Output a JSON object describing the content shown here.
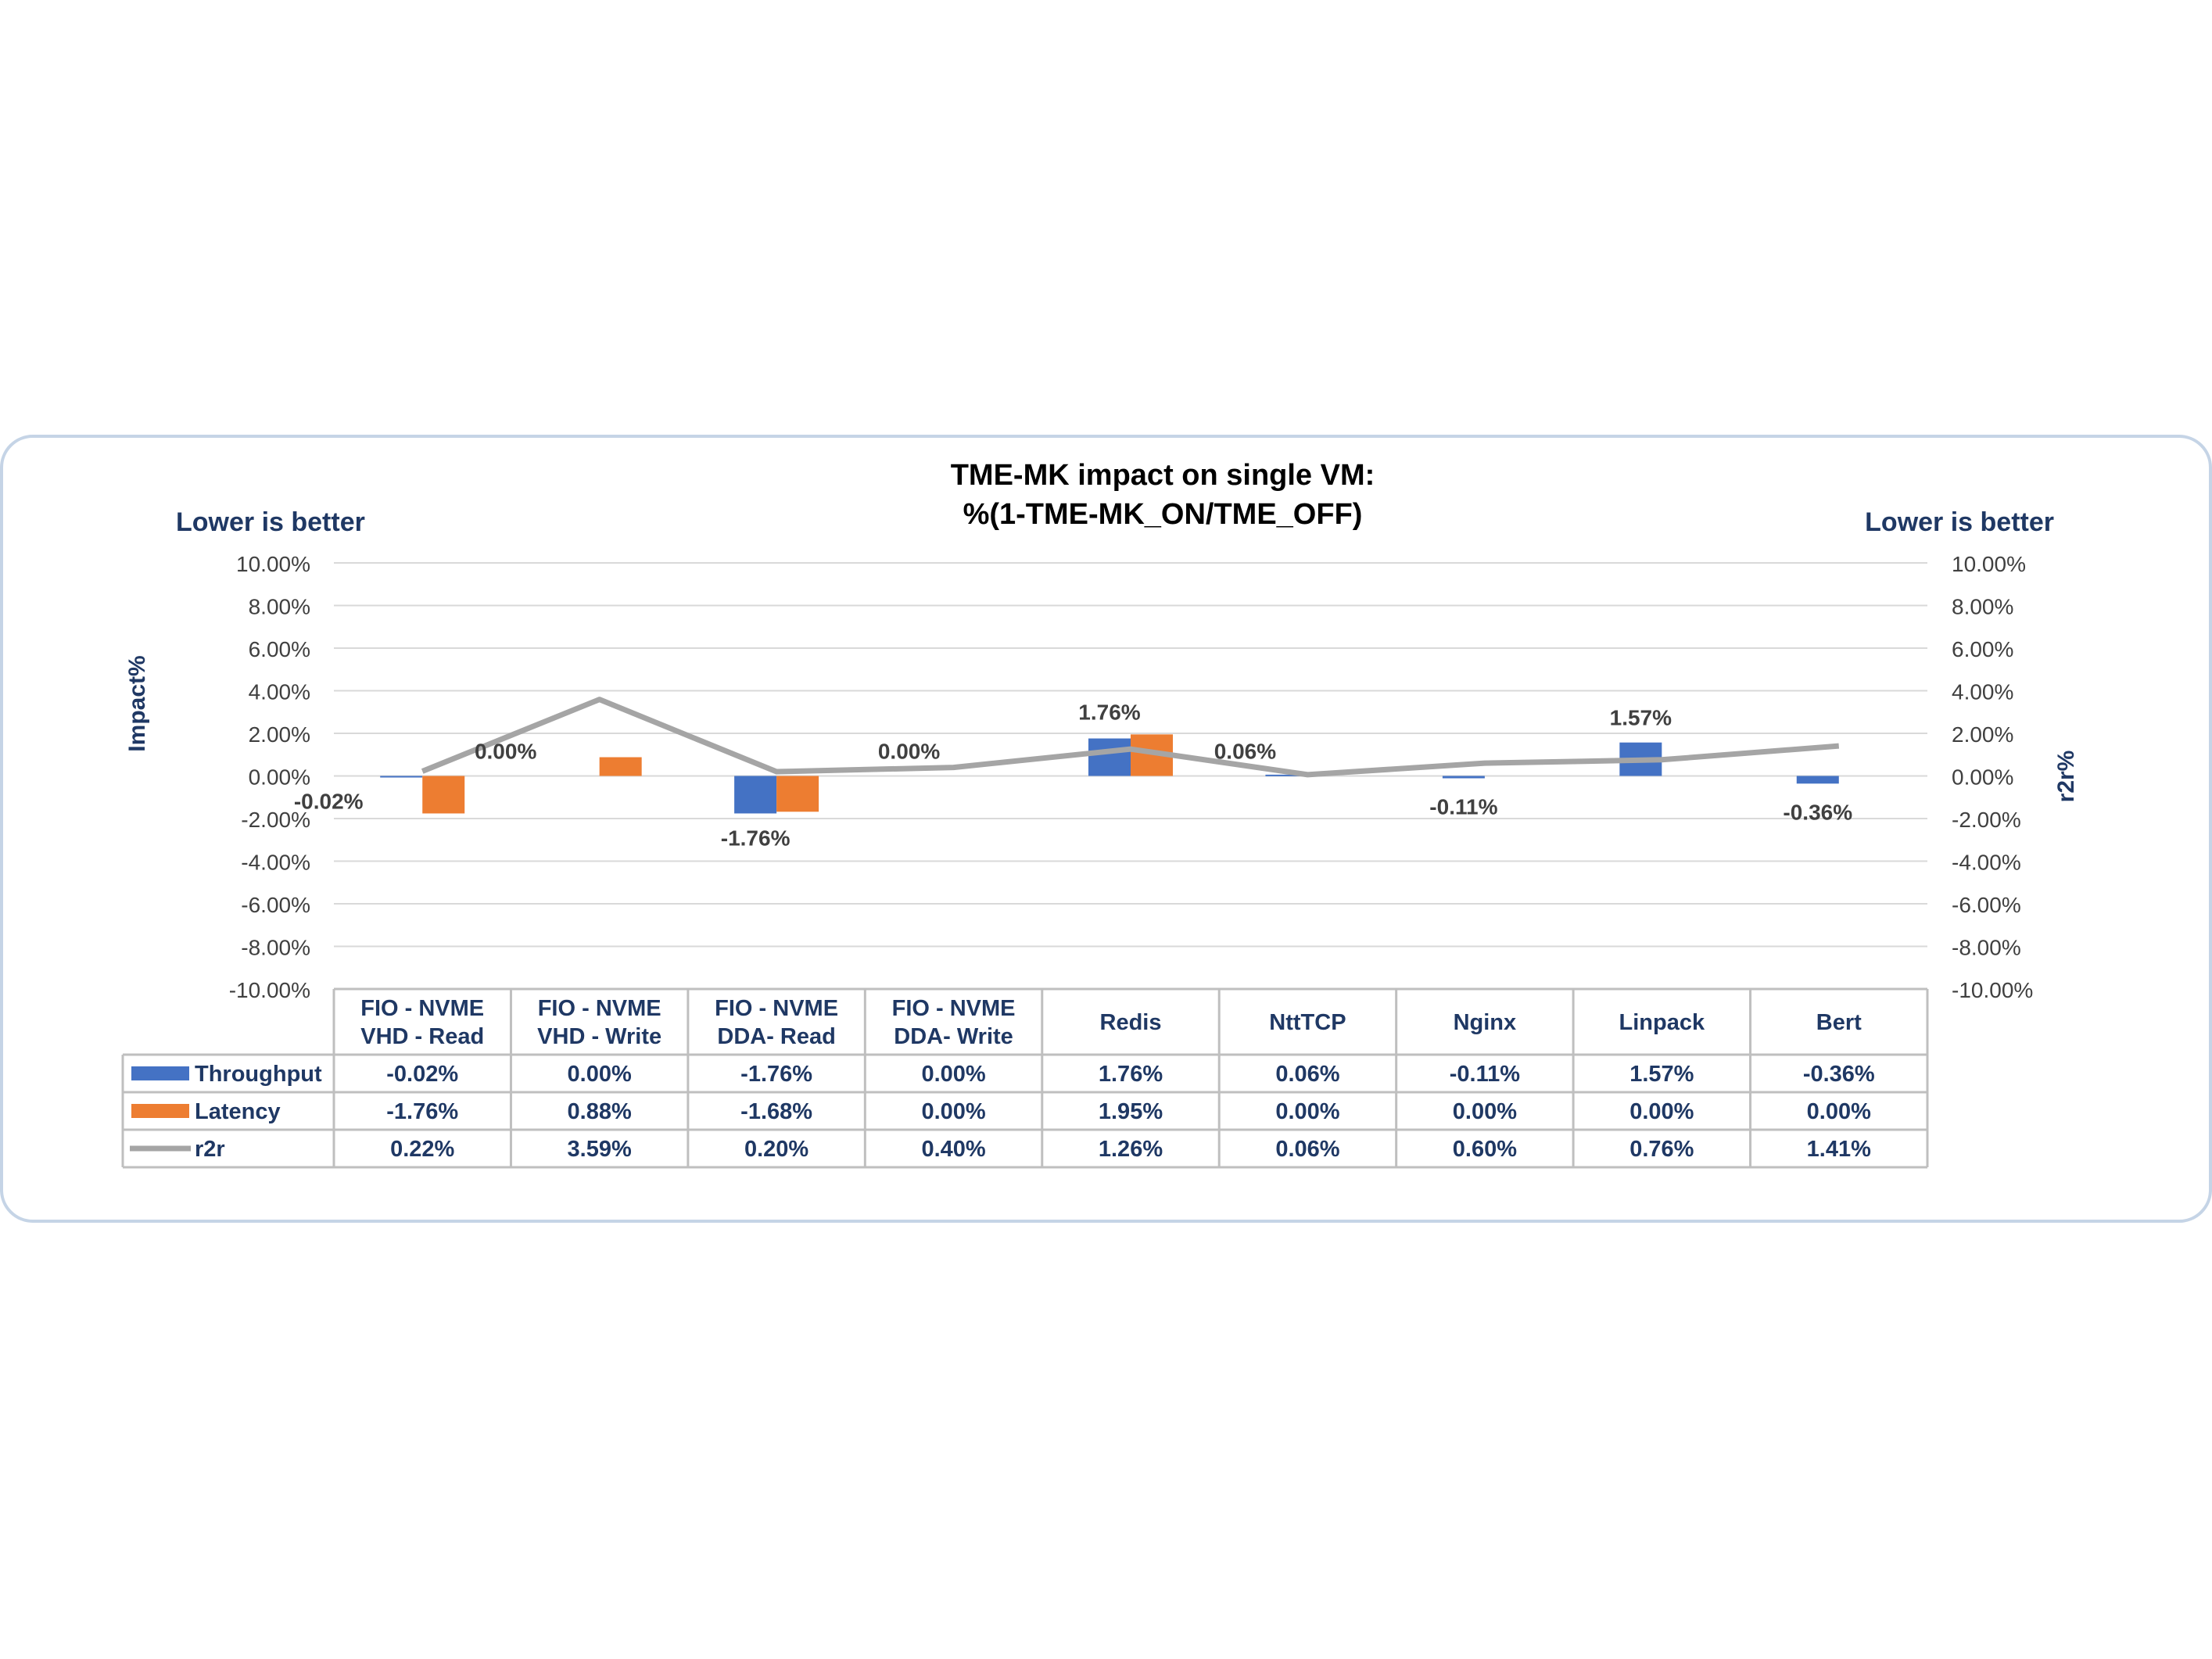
{
  "chart_data": {
    "type": "bar",
    "title": "TME-MK impact on single VM:",
    "subtitle": "%(1-TME-MK_ON/TME_OFF)",
    "left_note": "Lower is better",
    "right_note": "Lower is better",
    "ylabel": "Impact%",
    "y2label": "r2r%",
    "ylim": [
      -10,
      10
    ],
    "y2lim": [
      -10,
      10
    ],
    "yticks": [
      "10.00%",
      "8.00%",
      "6.00%",
      "4.00%",
      "2.00%",
      "0.00%",
      "-2.00%",
      "-4.00%",
      "-6.00%",
      "-8.00%",
      "-10.00%"
    ],
    "ytick_values": [
      10,
      8,
      6,
      4,
      2,
      0,
      -2,
      -4,
      -6,
      -8,
      -10
    ],
    "grid": true,
    "legend": "data-table",
    "categories": [
      [
        "FIO - NVME",
        "VHD - Read"
      ],
      [
        "FIO - NVME",
        "VHD - Write"
      ],
      [
        "FIO - NVME",
        "DDA- Read"
      ],
      [
        "FIO - NVME",
        "DDA- Write"
      ],
      [
        "Redis"
      ],
      [
        "NttTCP"
      ],
      [
        "Nginx"
      ],
      [
        "Linpack"
      ],
      [
        "Bert"
      ]
    ],
    "series": [
      {
        "name": "Throughput",
        "kind": "bar",
        "color": "#4472C4",
        "values": [
          -0.02,
          0.0,
          -1.76,
          0.0,
          1.76,
          0.06,
          -0.11,
          1.57,
          -0.36
        ],
        "labels": [
          "-0.02%",
          "0.00%",
          "-1.76%",
          "0.00%",
          "1.76%",
          "0.06%",
          "-0.11%",
          "1.57%",
          "-0.36%"
        ]
      },
      {
        "name": "Latency",
        "kind": "bar",
        "color": "#ED7D31",
        "values": [
          -1.76,
          0.88,
          -1.68,
          0.0,
          1.95,
          0.0,
          0.0,
          0.0,
          0.0
        ],
        "labels": [
          "-1.76%",
          "0.88%",
          "-1.68%",
          "0.00%",
          "1.95%",
          "0.00%",
          "0.00%",
          "0.00%",
          "0.00%"
        ]
      },
      {
        "name": "r2r",
        "kind": "line",
        "color": "#A5A5A5",
        "values": [
          0.22,
          3.59,
          0.2,
          0.4,
          1.26,
          0.06,
          0.6,
          0.76,
          1.41
        ],
        "labels": [
          "0.22%",
          "3.59%",
          "0.20%",
          "0.40%",
          "1.26%",
          "0.06%",
          "0.60%",
          "0.76%",
          "1.41%"
        ]
      }
    ],
    "data_labels": [
      "-0.02%",
      "0.00%",
      "-1.76%",
      "0.00%",
      "1.76%",
      "0.06%",
      "-0.11%",
      "1.57%",
      "-0.36%"
    ]
  }
}
